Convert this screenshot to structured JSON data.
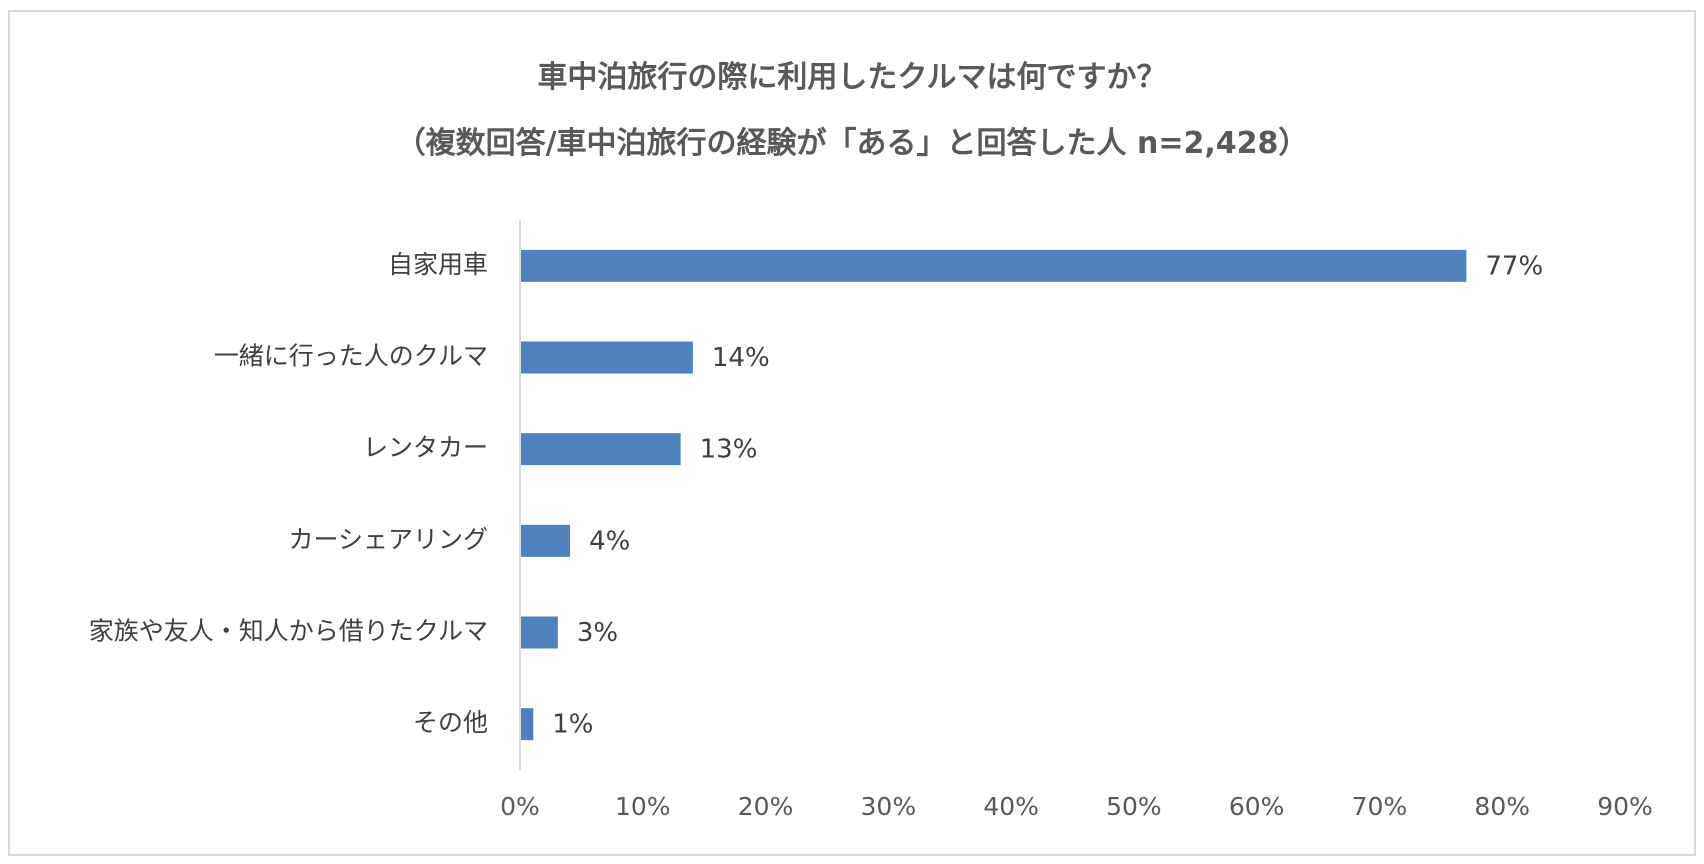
{
  "chart_data": {
    "type": "bar",
    "orientation": "horizontal",
    "title": "車中泊旅行の際に利用したクルマは何ですか？",
    "subtitle": "（複数回答/車中泊旅行の経験が「ある」と回答した人 n=2,428）",
    "categories": [
      "自家用車",
      "一緒に行った人のクルマ",
      "レンタカー",
      "カーシェアリング",
      "家族や友人・知人から借りたクルマ",
      "その他"
    ],
    "values": [
      77,
      14,
      13,
      4,
      3,
      1
    ],
    "value_labels": [
      "77%",
      "14%",
      "13%",
      "4%",
      "3%",
      "1%"
    ],
    "xlim": [
      0,
      90
    ],
    "x_ticks": [
      "0%",
      "10%",
      "20%",
      "30%",
      "40%",
      "50%",
      "60%",
      "70%",
      "80%",
      "90%"
    ],
    "x_tick_values": [
      0,
      10,
      20,
      30,
      40,
      50,
      60,
      70,
      80,
      90
    ],
    "xlabel": "",
    "ylabel": "",
    "grid": false,
    "legend": "none",
    "bar_color": "#4f81bd",
    "axis_color": "#d9d9d9"
  }
}
